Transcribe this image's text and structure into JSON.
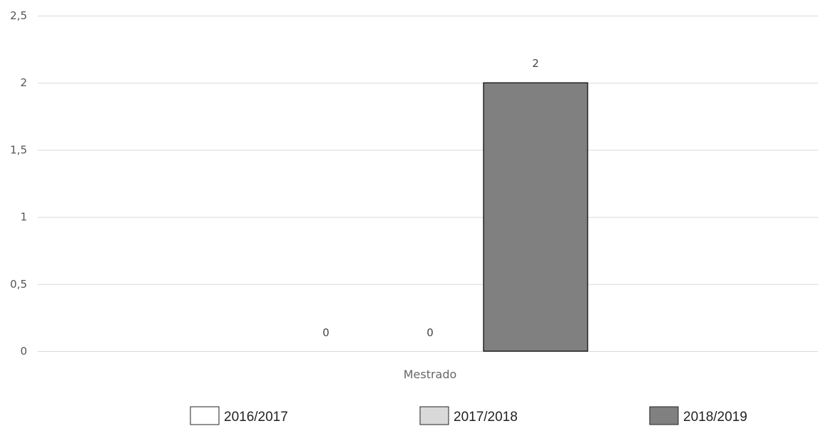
{
  "chart_data": {
    "type": "bar",
    "categories": [
      "Mestrado"
    ],
    "series": [
      {
        "name": "2016/2017",
        "values": [
          0
        ],
        "color": "#ffffff"
      },
      {
        "name": "2017/2018",
        "values": [
          0
        ],
        "color": "#d9d9d9"
      },
      {
        "name": "2018/2019",
        "values": [
          2
        ],
        "color": "#808080"
      }
    ],
    "data_labels": [
      "0",
      "0",
      "2"
    ],
    "y_ticks": [
      "0",
      "0,5",
      "1",
      "1,5",
      "2",
      "2,5"
    ],
    "y_tick_values": [
      0,
      0.5,
      1,
      1.5,
      2,
      2.5
    ],
    "ylim": [
      0,
      2.5
    ],
    "grid": true,
    "legend_position": "bottom",
    "bar_border_color": "#000000"
  }
}
